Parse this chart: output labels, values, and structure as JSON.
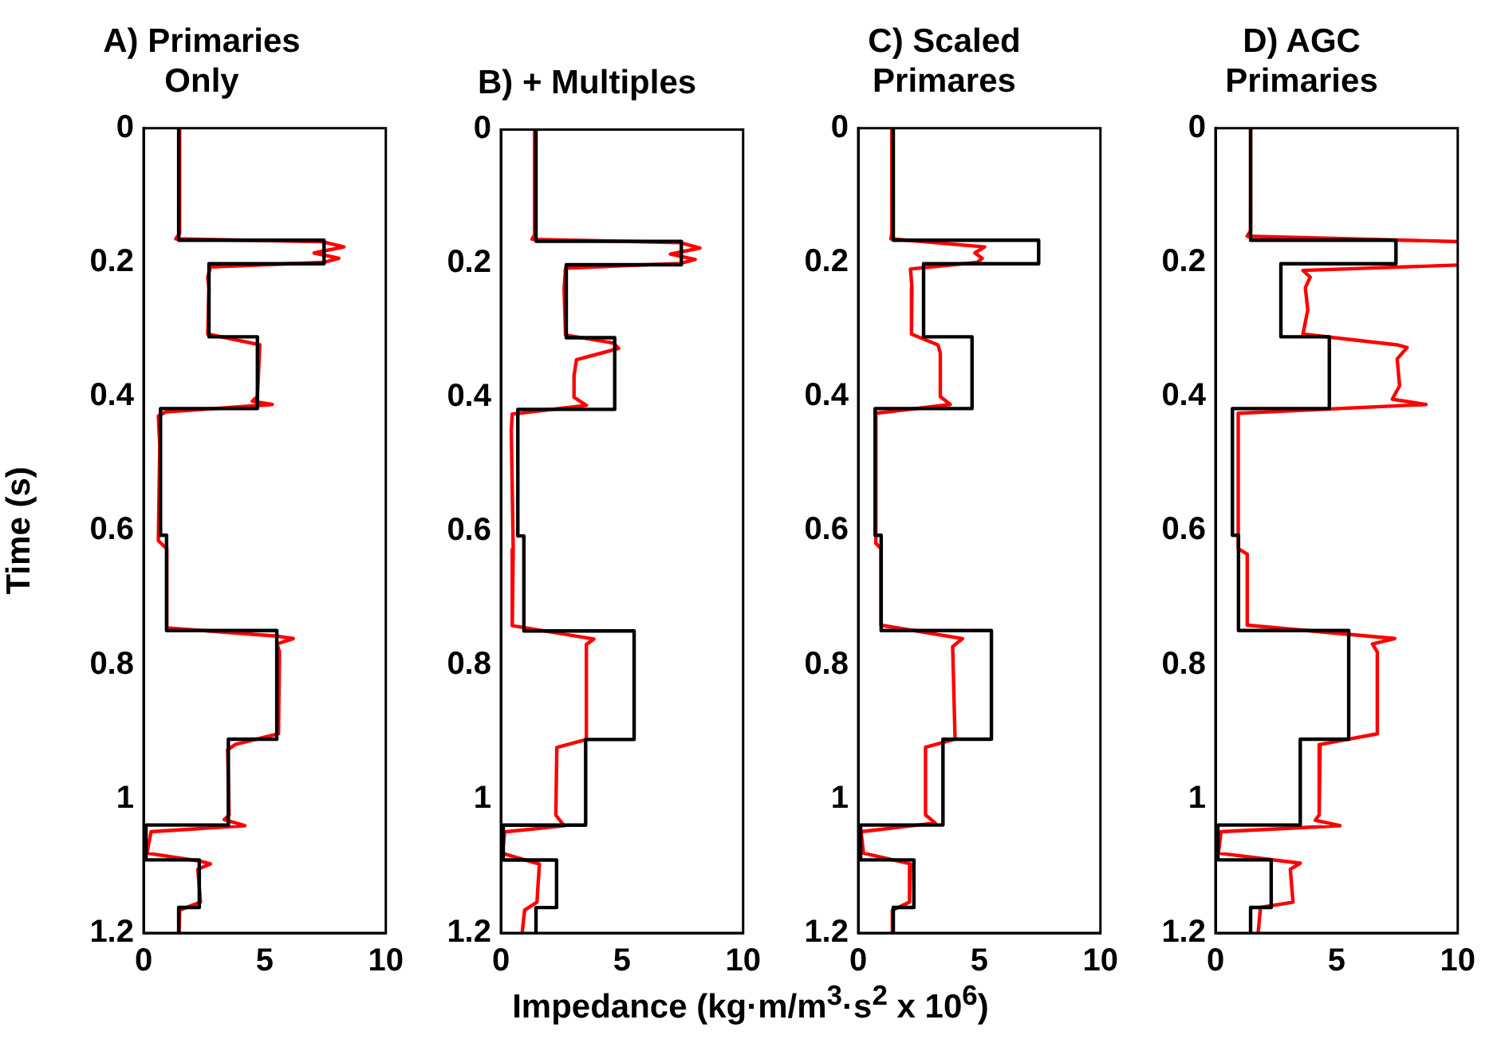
{
  "chart_data": [
    {
      "type": "line",
      "title": "A) Primaries\nOnly",
      "ylabel": "Time (s)",
      "xlim": [
        0,
        10
      ],
      "xticks": [
        0,
        5,
        10
      ],
      "ylim": [
        1.2,
        0
      ],
      "yticks": [
        0,
        0.2,
        0.4,
        0.6,
        0.8,
        1,
        1.2
      ],
      "marker": "none",
      "series": [
        {
          "color": "#000000",
          "x": [
            1.45,
            1.45,
            7.45,
            7.45,
            2.7,
            2.7,
            4.7,
            4.7,
            0.7,
            0.7,
            0.95,
            0.95,
            5.5,
            5.5,
            3.5,
            3.5,
            0.1,
            0.1,
            2.3,
            2.3,
            1.45,
            1.45
          ],
          "values": [
            0,
            0.167,
            0.167,
            0.202,
            0.202,
            0.311,
            0.311,
            0.418,
            0.418,
            0.607,
            0.607,
            0.749,
            0.749,
            0.911,
            0.911,
            1.039,
            1.039,
            1.091,
            1.091,
            1.162,
            1.162,
            1.2
          ]
        },
        {
          "color": "#ff0000",
          "x": [
            1.49,
            1.49,
            1.33,
            7.35,
            8.27,
            7.04,
            8.06,
            7.45,
            2.76,
            2.65,
            2.7,
            2.65,
            4.8,
            4.7,
            4.49,
            5.31,
            0.92,
            0.61,
            0.67,
            0.61,
            0.96,
            0.96,
            5.41,
            6.18,
            5.51,
            5.61,
            5.57,
            3.78,
            3.47,
            3.53,
            3.33,
            4.18,
            0.31,
            0.14,
            2.35,
            2.76,
            2.24,
            2.35,
            1.49,
            1.47
          ],
          "values": [
            0,
            0.157,
            0.165,
            0.169,
            0.177,
            0.186,
            0.194,
            0.2,
            0.207,
            0.222,
            0.238,
            0.307,
            0.323,
            0.4,
            0.407,
            0.412,
            0.423,
            0.429,
            0.473,
            0.615,
            0.627,
            0.745,
            0.757,
            0.761,
            0.769,
            0.781,
            0.903,
            0.919,
            0.927,
            1.024,
            1.031,
            1.04,
            1.049,
            1.081,
            1.093,
            1.097,
            1.105,
            1.154,
            1.166,
            1.2
          ]
        }
      ]
    },
    {
      "type": "line",
      "title": "B) + Multiples",
      "xlabel": "Impedance (kg·m/m$^{3}$·s$^{2}$ x 10$^{6}$)",
      "xlim": [
        0,
        10
      ],
      "xticks": [
        0,
        5,
        10
      ],
      "ylim": [
        1.2,
        0
      ],
      "yticks": [
        0,
        0.2,
        0.4,
        0.6,
        0.8,
        1,
        1.2
      ],
      "marker": "none",
      "series": [
        {
          "color": "#000000",
          "x": [
            1.45,
            1.45,
            7.45,
            7.45,
            2.7,
            2.7,
            4.7,
            4.7,
            0.7,
            0.7,
            0.95,
            0.95,
            5.5,
            5.5,
            3.5,
            3.5,
            0.1,
            0.1,
            2.3,
            2.3,
            1.45,
            1.45
          ],
          "values": [
            0,
            0.167,
            0.167,
            0.202,
            0.202,
            0.311,
            0.311,
            0.418,
            0.418,
            0.607,
            0.607,
            0.749,
            0.749,
            0.911,
            0.911,
            1.039,
            1.039,
            1.091,
            1.091,
            1.162,
            1.162,
            1.2
          ]
        },
        {
          "color": "#ff0000",
          "x": [
            1.39,
            1.39,
            1.29,
            7.41,
            8.22,
            7.0,
            8.02,
            7.41,
            2.67,
            2.61,
            2.67,
            4.65,
            4.86,
            3.12,
            3.02,
            3.02,
            3.53,
            0.47,
            0.43,
            0.51,
            0.47,
            3.84,
            3.53,
            3.53,
            2.31,
            2.27,
            2.61,
            0.16,
            0.06,
            1.59,
            1.49,
            0.98,
            0.88
          ],
          "values": [
            0,
            0.157,
            0.164,
            0.169,
            0.177,
            0.186,
            0.194,
            0.2,
            0.207,
            0.238,
            0.307,
            0.319,
            0.327,
            0.344,
            0.368,
            0.4,
            0.412,
            0.425,
            0.449,
            0.627,
            0.741,
            0.761,
            0.769,
            0.911,
            0.923,
            1.024,
            1.04,
            1.049,
            1.081,
            1.097,
            1.154,
            1.166,
            1.2
          ]
        }
      ]
    },
    {
      "type": "line",
      "title": "C) Scaled\nPrimares",
      "xlim": [
        0,
        10
      ],
      "xticks": [
        0,
        5,
        10
      ],
      "ylim": [
        1.2,
        0
      ],
      "yticks": [
        0,
        0.2,
        0.4,
        0.6,
        0.8,
        1,
        1.2
      ],
      "marker": "none",
      "series": [
        {
          "color": "#000000",
          "x": [
            1.45,
            1.45,
            7.45,
            7.45,
            2.7,
            2.7,
            4.7,
            4.7,
            0.7,
            0.7,
            0.95,
            0.95,
            5.5,
            5.5,
            3.5,
            3.5,
            0.1,
            0.1,
            2.3,
            2.3,
            1.45,
            1.45
          ],
          "values": [
            0,
            0.167,
            0.167,
            0.202,
            0.202,
            0.311,
            0.311,
            0.418,
            0.418,
            0.607,
            0.607,
            0.749,
            0.749,
            0.911,
            0.911,
            1.039,
            1.039,
            1.091,
            1.091,
            1.162,
            1.162,
            1.2
          ]
        },
        {
          "color": "#ff0000",
          "x": [
            1.39,
            1.39,
            1.35,
            5.22,
            4.82,
            5.12,
            4.92,
            2.16,
            2.22,
            2.2,
            3.29,
            3.39,
            3.39,
            3.8,
            0.73,
            0.73,
            0.94,
            0.94,
            4.31,
            3.9,
            4.0,
            2.78,
            2.78,
            3.18,
            0.12,
            0.22,
            2.16,
            2.12,
            1.41,
            1.41
          ],
          "values": [
            0,
            0.157,
            0.165,
            0.177,
            0.186,
            0.194,
            0.2,
            0.21,
            0.238,
            0.307,
            0.323,
            0.335,
            0.4,
            0.412,
            0.425,
            0.619,
            0.627,
            0.741,
            0.761,
            0.773,
            0.911,
            0.923,
            1.024,
            1.036,
            1.049,
            1.081,
            1.097,
            1.154,
            1.166,
            1.2
          ]
        }
      ]
    },
    {
      "type": "line",
      "title": "D) AGC\nPrimaries",
      "xlim": [
        0,
        10
      ],
      "xticks": [
        0,
        5,
        10
      ],
      "ylim": [
        1.2,
        0
      ],
      "yticks": [
        0,
        0.2,
        0.4,
        0.6,
        0.8,
        1,
        1.2
      ],
      "marker": "none",
      "series": [
        {
          "color": "#000000",
          "x": [
            1.45,
            1.45,
            7.45,
            7.45,
            2.7,
            2.7,
            4.7,
            4.7,
            0.7,
            0.7,
            0.95,
            0.95,
            5.5,
            5.5,
            3.5,
            3.5,
            0.1,
            0.1,
            2.3,
            2.3,
            1.45,
            1.45
          ],
          "values": [
            0,
            0.167,
            0.167,
            0.202,
            0.202,
            0.311,
            0.311,
            0.418,
            0.418,
            0.607,
            0.607,
            0.749,
            0.749,
            0.911,
            0.911,
            1.039,
            1.039,
            1.091,
            1.091,
            1.162,
            1.162,
            1.2
          ]
        },
        {
          "color": "#ff0000",
          "x": [
            1.45,
            1.45,
            1.31,
            10,
            null,
            10,
            3.61,
            3.91,
            3.71,
            3.81,
            3.61,
            7.5,
            7.91,
            7.5,
            7.6,
            7.3,
            8.69,
            0.94,
            0.94,
            0.94,
            1.31,
            1.31,
            7.4,
            6.48,
            6.68,
            6.68,
            4.32,
            4.28,
            4.12,
            5.14,
            0.23,
            0.12,
            3.5,
            3.09,
            3.2,
            1.86,
            1.76
          ],
          "values": [
            0,
            0.153,
            0.161,
            0.169,
            null,
            0.204,
            0.212,
            0.222,
            0.238,
            0.271,
            0.307,
            0.323,
            0.327,
            0.344,
            0.384,
            0.404,
            0.412,
            0.425,
            0.449,
            0.627,
            0.635,
            0.741,
            0.761,
            0.769,
            0.781,
            0.903,
            0.919,
            1.024,
            1.032,
            1.04,
            1.049,
            1.081,
            1.096,
            1.105,
            1.154,
            1.162,
            1.2
          ]
        }
      ]
    }
  ]
}
